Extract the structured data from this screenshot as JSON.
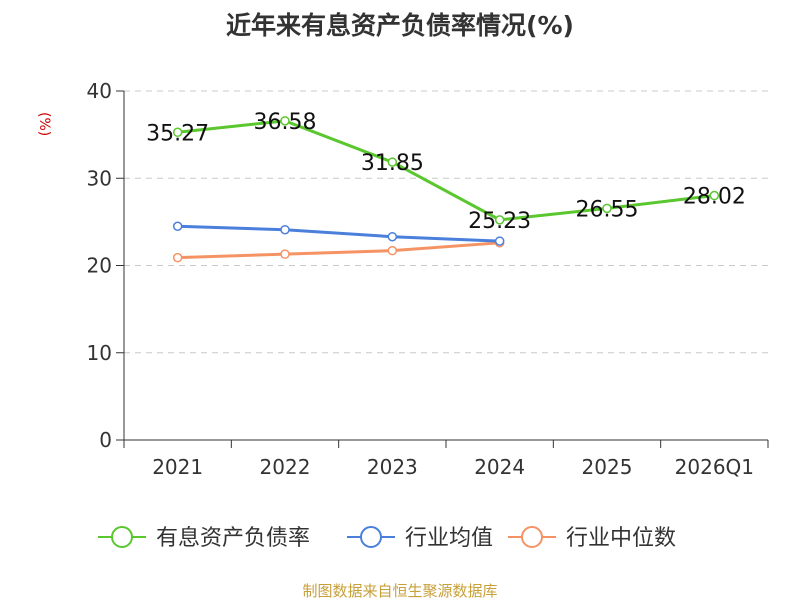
{
  "chart_data": {
    "type": "line",
    "title": "近年来有息资产负债率情况(%)",
    "ylabel": "(%)",
    "categories": [
      "2021",
      "2022",
      "2023",
      "2024",
      "2025",
      "2026Q1"
    ],
    "ylim": [
      0,
      40
    ],
    "yticks": [
      0,
      10,
      20,
      30,
      40
    ],
    "grid": true,
    "legend_position": "bottom",
    "series": [
      {
        "name": "有息资产负债率",
        "color": "#5ac72f",
        "values": [
          35.27,
          36.58,
          31.85,
          25.23,
          26.55,
          28.02
        ],
        "labels": [
          "35.27",
          "36.58",
          "31.85",
          "25.23",
          "26.55",
          "28.02"
        ]
      },
      {
        "name": "行业均值",
        "color": "#4a7fdc",
        "values": [
          24.5,
          24.1,
          23.3,
          22.8,
          null,
          null
        ]
      },
      {
        "name": "行业中位数",
        "color": "#f59364",
        "values": [
          20.9,
          21.3,
          21.7,
          22.6,
          null,
          null
        ]
      }
    ]
  },
  "source": "制图数据来自恒生聚源数据库"
}
